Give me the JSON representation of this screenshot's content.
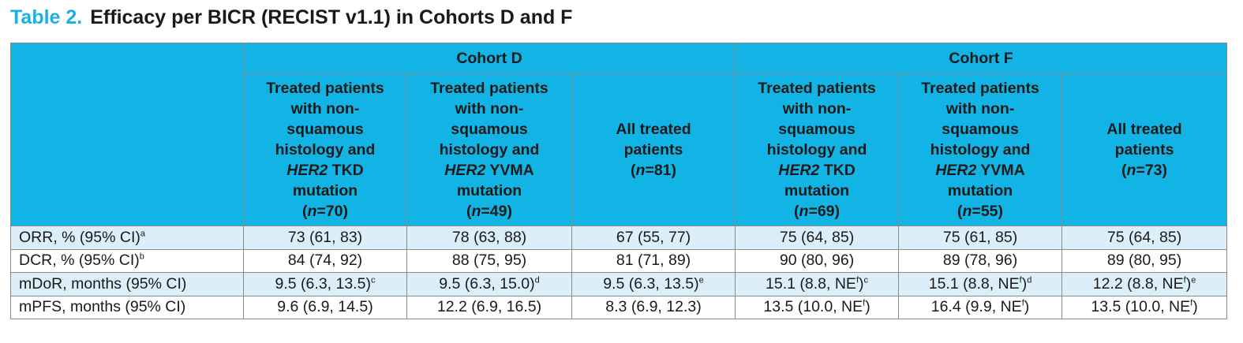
{
  "title": {
    "label": "Table 2.",
    "text": "Efficacy per BICR (RECIST v1.1) in Cohorts D and F"
  },
  "cohorts": [
    {
      "name": "Cohort D"
    },
    {
      "name": "Cohort F"
    }
  ],
  "groups": [
    {
      "l1": "Treated patients",
      "l2": "with non-",
      "l3": "squamous",
      "l4": "histology and",
      "gene": "HER2",
      "mut": " TKD",
      "l6": "mutation",
      "n_open": "(",
      "n_var": "n",
      "n_val": "=70)"
    },
    {
      "l1": "Treated patients",
      "l2": "with non-",
      "l3": "squamous",
      "l4": "histology and",
      "gene": "HER2",
      "mut": " YVMA",
      "l6": "mutation",
      "n_open": "(",
      "n_var": "n",
      "n_val": "=49)"
    },
    {
      "l1": "All treated",
      "l2": "patients",
      "n_open": "(",
      "n_var": "n",
      "n_val": "=81)"
    },
    {
      "l1": "Treated patients",
      "l2": "with non-",
      "l3": "squamous",
      "l4": "histology and",
      "gene": "HER2",
      "mut": " TKD",
      "l6": "mutation",
      "n_open": "(",
      "n_var": "n",
      "n_val": "=69)"
    },
    {
      "l1": "Treated patients",
      "l2": "with non-",
      "l3": "squamous",
      "l4": "histology and",
      "gene": "HER2",
      "mut": " YVMA",
      "l6": "mutation",
      "n_open": "(",
      "n_var": "n",
      "n_val": "=55)"
    },
    {
      "l1": "All treated",
      "l2": "patients",
      "n_open": "(",
      "n_var": "n",
      "n_val": "=73)"
    }
  ],
  "rows": [
    {
      "label": "ORR, % (95% CI)",
      "label_sup": "a",
      "cells": [
        {
          "v": "73 (61, 83)"
        },
        {
          "v": "78 (63, 88)"
        },
        {
          "v": "67 (55, 77)"
        },
        {
          "v": "75 (64, 85)"
        },
        {
          "v": "75 (61, 85)"
        },
        {
          "v": "75 (64, 85)"
        }
      ]
    },
    {
      "label": "DCR, % (95% CI)",
      "label_sup": "b",
      "cells": [
        {
          "v": "84 (74, 92)"
        },
        {
          "v": "88 (75, 95)"
        },
        {
          "v": "81 (71, 89)"
        },
        {
          "v": "90 (80, 96)"
        },
        {
          "v": "89 (78, 96)"
        },
        {
          "v": "89 (80, 95)"
        }
      ]
    },
    {
      "label": "mDoR, months (95% CI)",
      "cells": [
        {
          "v": "9.5 (6.3, 13.5)",
          "s2": "c"
        },
        {
          "v": "9.5 (6.3, 15.0)",
          "s2": "d"
        },
        {
          "v": "9.5 (6.3, 13.5)",
          "s2": "e"
        },
        {
          "v": "15.1 (8.8, NE",
          "s1": "f",
          "tail": ")",
          "s2": "c"
        },
        {
          "v": "15.1 (8.8, NE",
          "s1": "f",
          "tail": ")",
          "s2": "d"
        },
        {
          "v": "12.2 (8.8, NE",
          "s1": "f",
          "tail": ")",
          "s2": "e"
        }
      ]
    },
    {
      "label": "mPFS, months (95% CI)",
      "cells": [
        {
          "v": "9.6 (6.9, 14.5)"
        },
        {
          "v": "12.2 (6.9, 16.5)"
        },
        {
          "v": "8.3 (6.9, 12.3)"
        },
        {
          "v": "13.5 (10.0, NE",
          "s1": "f",
          "tail": ")"
        },
        {
          "v": "16.4 (9.9, NE",
          "s1": "f",
          "tail": ")"
        },
        {
          "v": "13.5 (10.0, NE",
          "s1": "f",
          "tail": ")"
        }
      ]
    }
  ]
}
